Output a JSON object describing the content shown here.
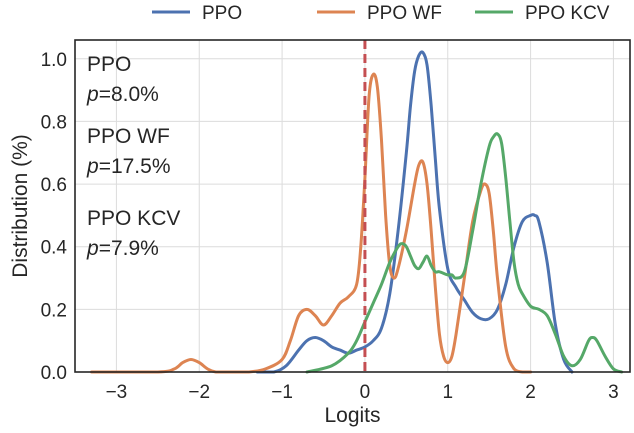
{
  "chart_data": {
    "type": "line",
    "title": "",
    "xlabel": "Logits",
    "ylabel": "Distribution (%)",
    "xlim": [
      -3.5,
      3.2
    ],
    "ylim": [
      0,
      1.06
    ],
    "xticks": [
      -3,
      -2,
      -1,
      0,
      1,
      2,
      3
    ],
    "xtick_labels": [
      "−3",
      "−2",
      "−1",
      "0",
      "1",
      "2",
      "3"
    ],
    "yticks": [
      0.0,
      0.2,
      0.4,
      0.6,
      0.8,
      1.0
    ],
    "ytick_labels": [
      "0.0",
      "0.2",
      "0.4",
      "0.6",
      "0.8",
      "1.0"
    ],
    "grid": true,
    "legend_position": "top",
    "reference_line": {
      "x": 0,
      "style": "dashed",
      "color": "#c44e52"
    },
    "series": [
      {
        "name": "PPO",
        "color": "#4c72b0",
        "x": [
          -1.3,
          -1.1,
          -0.95,
          -0.8,
          -0.7,
          -0.6,
          -0.5,
          -0.4,
          -0.3,
          -0.2,
          -0.1,
          0.0,
          0.1,
          0.2,
          0.3,
          0.4,
          0.5,
          0.55,
          0.6,
          0.65,
          0.7,
          0.75,
          0.8,
          0.85,
          0.9,
          1.0,
          1.1,
          1.2,
          1.3,
          1.4,
          1.5,
          1.6,
          1.7,
          1.8,
          1.9,
          2.0,
          2.05,
          2.1,
          2.2,
          2.3,
          2.4,
          2.5
        ],
        "y": [
          0.0,
          0.0,
          0.02,
          0.07,
          0.1,
          0.11,
          0.1,
          0.08,
          0.07,
          0.06,
          0.07,
          0.08,
          0.1,
          0.14,
          0.25,
          0.45,
          0.7,
          0.85,
          0.96,
          1.01,
          1.02,
          0.98,
          0.85,
          0.68,
          0.52,
          0.33,
          0.27,
          0.23,
          0.19,
          0.17,
          0.17,
          0.2,
          0.28,
          0.4,
          0.48,
          0.5,
          0.5,
          0.48,
          0.35,
          0.15,
          0.04,
          0.0
        ]
      },
      {
        "name": "PPO WF",
        "color": "#dd8452",
        "x": [
          -3.3,
          -2.5,
          -2.3,
          -2.2,
          -2.1,
          -2.0,
          -1.9,
          -1.8,
          -1.6,
          -1.4,
          -1.2,
          -1.0,
          -0.9,
          -0.8,
          -0.7,
          -0.6,
          -0.5,
          -0.4,
          -0.3,
          -0.2,
          -0.1,
          -0.05,
          0.0,
          0.05,
          0.1,
          0.15,
          0.2,
          0.25,
          0.3,
          0.35,
          0.4,
          0.5,
          0.6,
          0.65,
          0.7,
          0.75,
          0.8,
          0.85,
          0.9,
          0.95,
          1.0,
          1.05,
          1.1,
          1.2,
          1.3,
          1.4,
          1.45,
          1.5,
          1.55,
          1.6,
          1.7,
          1.8,
          1.9,
          2.0
        ],
        "y": [
          0.0,
          0.0,
          0.01,
          0.03,
          0.04,
          0.03,
          0.01,
          0.0,
          0.0,
          0.0,
          0.01,
          0.04,
          0.1,
          0.18,
          0.2,
          0.18,
          0.15,
          0.18,
          0.22,
          0.24,
          0.28,
          0.4,
          0.62,
          0.88,
          0.95,
          0.91,
          0.74,
          0.5,
          0.34,
          0.3,
          0.33,
          0.45,
          0.6,
          0.66,
          0.67,
          0.6,
          0.45,
          0.27,
          0.12,
          0.05,
          0.03,
          0.05,
          0.12,
          0.3,
          0.48,
          0.58,
          0.6,
          0.57,
          0.45,
          0.3,
          0.08,
          0.01,
          0.0,
          0.0
        ]
      },
      {
        "name": "PPO KCV",
        "color": "#55a868",
        "x": [
          -0.7,
          -0.4,
          -0.2,
          -0.1,
          0.0,
          0.1,
          0.2,
          0.3,
          0.4,
          0.45,
          0.5,
          0.55,
          0.6,
          0.65,
          0.7,
          0.75,
          0.8,
          0.85,
          0.9,
          1.0,
          1.05,
          1.1,
          1.2,
          1.3,
          1.4,
          1.5,
          1.55,
          1.6,
          1.65,
          1.7,
          1.75,
          1.8,
          1.85,
          1.9,
          2.0,
          2.1,
          2.2,
          2.3,
          2.4,
          2.5,
          2.6,
          2.7,
          2.75,
          2.8,
          2.9,
          3.0,
          3.1
        ],
        "y": [
          0.0,
          0.02,
          0.06,
          0.1,
          0.16,
          0.22,
          0.28,
          0.35,
          0.4,
          0.41,
          0.4,
          0.37,
          0.34,
          0.33,
          0.35,
          0.37,
          0.34,
          0.32,
          0.32,
          0.31,
          0.31,
          0.3,
          0.32,
          0.45,
          0.6,
          0.72,
          0.75,
          0.76,
          0.73,
          0.62,
          0.48,
          0.35,
          0.28,
          0.25,
          0.21,
          0.2,
          0.18,
          0.12,
          0.05,
          0.02,
          0.04,
          0.1,
          0.11,
          0.1,
          0.05,
          0.01,
          0.0
        ]
      }
    ],
    "annotations": [
      {
        "label": "PPO",
        "stat_symbol": "p",
        "stat_value": "=8.0%"
      },
      {
        "label": "PPO WF",
        "stat_symbol": "p",
        "stat_value": "=17.5%"
      },
      {
        "label": "PPO KCV",
        "stat_symbol": "p",
        "stat_value": "=7.9%"
      }
    ]
  }
}
